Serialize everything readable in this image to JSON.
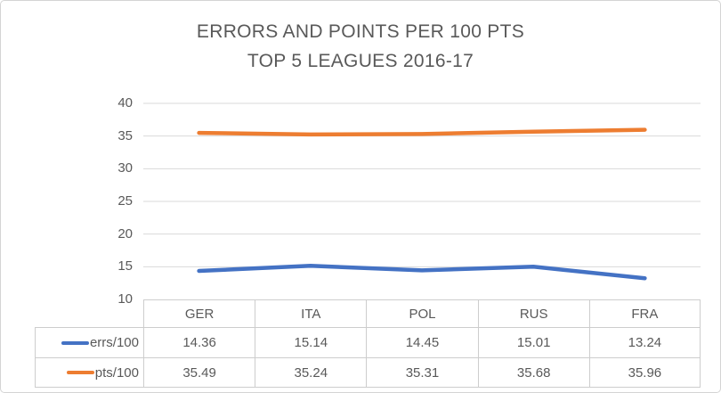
{
  "chart_data": {
    "type": "line",
    "title": "ERRORS AND POINTS PER 100 PTS",
    "subtitle": "TOP 5 LEAGUES 2016-17",
    "categories": [
      "GER",
      "ITA",
      "POL",
      "RUS",
      "FRA"
    ],
    "series": [
      {
        "name": "errs/100",
        "color": "#4472C4",
        "values": [
          14.36,
          15.14,
          14.45,
          15.01,
          13.24
        ]
      },
      {
        "name": "pts/100",
        "color": "#ED7D31",
        "values": [
          35.49,
          35.24,
          35.31,
          35.68,
          35.96
        ]
      }
    ],
    "xlabel": "",
    "ylabel": "",
    "ylim": [
      10,
      40
    ],
    "ytick_step": 5,
    "ytick_labels": [
      "40",
      "35",
      "30",
      "25",
      "20",
      "15",
      "10"
    ],
    "grid": true,
    "legend_position": "table-left",
    "data_table_shown": true
  },
  "colors": {
    "title_text": "#595959",
    "axis_text": "#595959",
    "gridline": "#d9d9d9",
    "table_border": "#cdcdcd",
    "frame_border": "#d4d4d4",
    "background": "#ffffff",
    "series_blue": "#4472C4",
    "series_orange": "#ED7D31"
  }
}
